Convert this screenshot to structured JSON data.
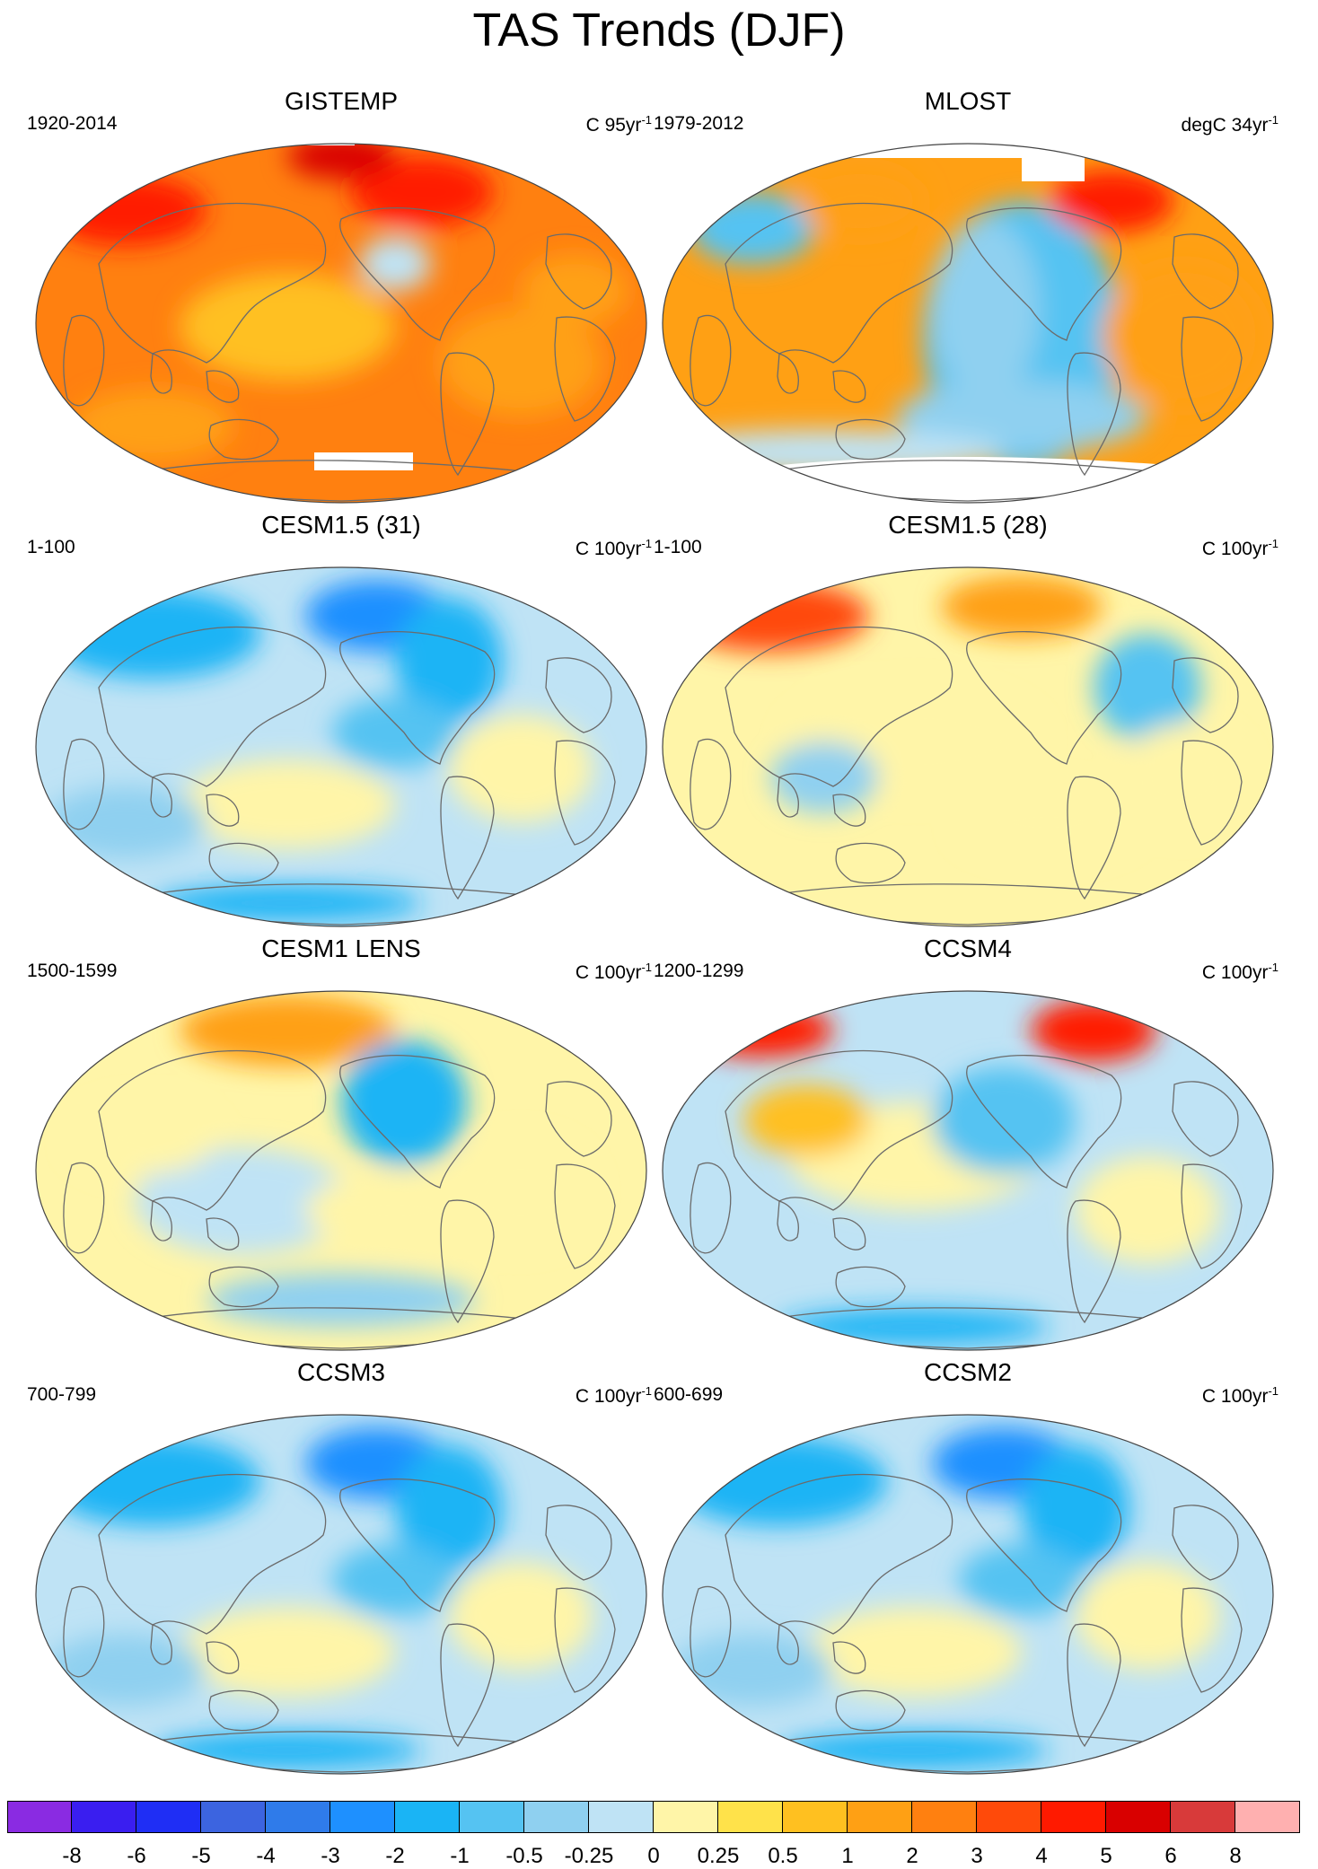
{
  "figure": {
    "title": "TAS Trends (DJF)"
  },
  "panels": [
    {
      "name": "GISTEMP",
      "period": "1920-2014",
      "units_base": "C 95yr",
      "units_exp": "-1",
      "tone": "warm",
      "has_missing": true
    },
    {
      "name": "MLOST",
      "period": "1979-2012",
      "units_base": "degC 34yr",
      "units_exp": "-1",
      "tone": "mixed",
      "has_missing": true
    },
    {
      "name": "CESM1.5 (31)",
      "period": "1-100",
      "units_base": "C 100yr",
      "units_exp": "-1",
      "tone": "cool",
      "has_missing": false
    },
    {
      "name": "CESM1.5 (28)",
      "period": "1-100",
      "units_base": "C 100yr",
      "units_exp": "-1",
      "tone": "neutral-warm",
      "has_missing": false
    },
    {
      "name": "CESM1 LENS",
      "period": "1500-1599",
      "units_base": "C 100yr",
      "units_exp": "-1",
      "tone": "neutral",
      "has_missing": false
    },
    {
      "name": "CCSM4",
      "period": "1200-1299",
      "units_base": "C 100yr",
      "units_exp": "-1",
      "tone": "neutral-cool",
      "has_missing": false
    },
    {
      "name": "CCSM3",
      "period": "700-799",
      "units_base": "C 100yr",
      "units_exp": "-1",
      "tone": "cool",
      "has_missing": false
    },
    {
      "name": "CCSM2",
      "period": "600-699",
      "units_base": "C 100yr",
      "units_exp": "-1",
      "tone": "cool",
      "has_missing": false
    }
  ],
  "colorbar": {
    "labels": [
      "-8",
      "-6",
      "-5",
      "-4",
      "-3",
      "-2",
      "-1",
      "-0.5",
      "-0.25",
      "0",
      "0.25",
      "0.5",
      "1",
      "2",
      "3",
      "4",
      "5",
      "6",
      "8"
    ],
    "colors": [
      "#8a2be2",
      "#3a1ef0",
      "#1f2ef5",
      "#3c64e0",
      "#2f7bea",
      "#1e90ff",
      "#1ab4f5",
      "#55c3f2",
      "#8fd0f0",
      "#bfe3f5",
      "#fff5a8",
      "#ffe24a",
      "#ffc020",
      "#ffa014",
      "#ff8010",
      "#ff4a0a",
      "#ff1a00",
      "#d90000",
      "#d83a3a",
      "#ffb0b0"
    ]
  }
}
